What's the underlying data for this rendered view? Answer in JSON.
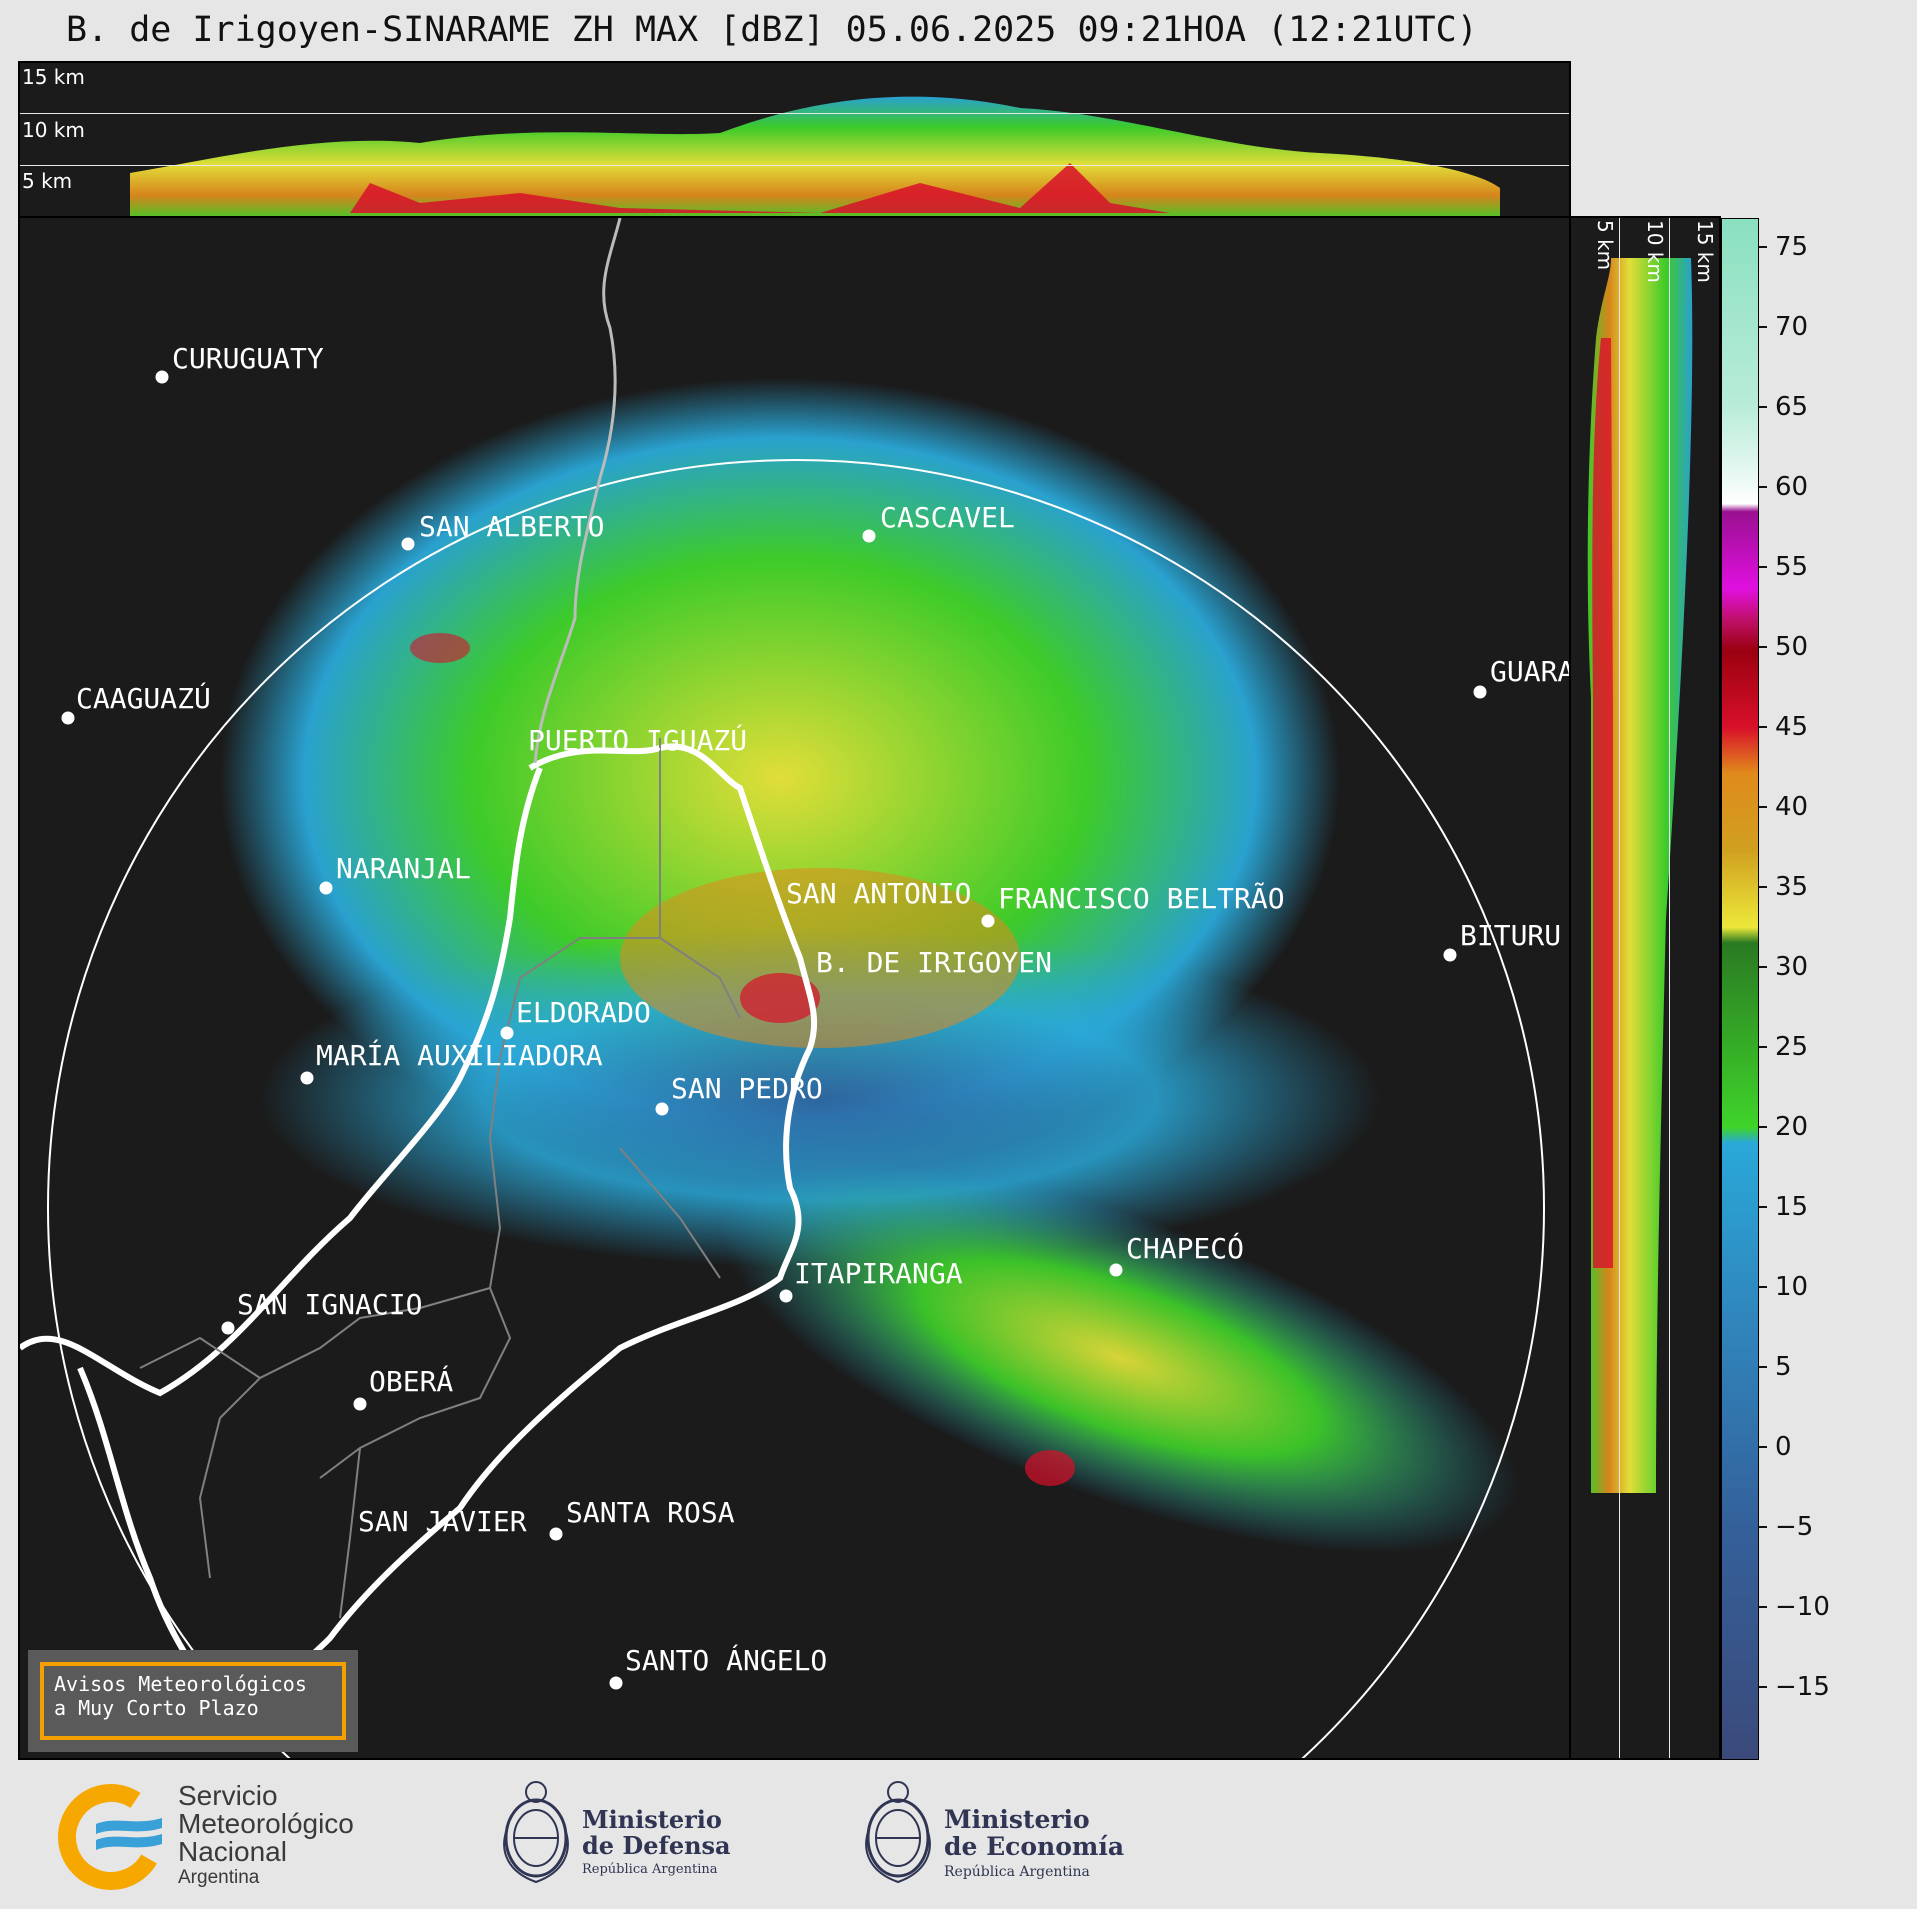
{
  "title": "B. de Irigoyen-SINARAME ZH MAX [dBZ] 05.06.2025 09:21HOA (12:21UTC)",
  "top_panel": {
    "altitude_labels": [
      "15 km",
      "10 km",
      "5 km"
    ]
  },
  "side_panel": {
    "altitude_labels": [
      "5 km",
      "10 km",
      "15 km"
    ]
  },
  "cities": [
    {
      "name": "CURUGUATY"
    },
    {
      "name": "SAN ALBERTO"
    },
    {
      "name": "CASCAVEL"
    },
    {
      "name": "CAAGUAZÚ"
    },
    {
      "name": "GUARA"
    },
    {
      "name": "PUERTO IGUAZÚ"
    },
    {
      "name": "NARANJAL"
    },
    {
      "name": "SAN ANTONIO"
    },
    {
      "name": "FRANCISCO BELTRÃO"
    },
    {
      "name": "BITURU"
    },
    {
      "name": "B. DE IRIGOYEN"
    },
    {
      "name": "ELDORADO"
    },
    {
      "name": "MARÍA AUXILIADORA"
    },
    {
      "name": "SAN PEDRO"
    },
    {
      "name": "CHAPECÓ"
    },
    {
      "name": "ITAPIRANGA"
    },
    {
      "name": "SAN IGNACIO"
    },
    {
      "name": "OBERÁ"
    },
    {
      "name": "SAN JAVIER"
    },
    {
      "name": "SANTA ROSA"
    },
    {
      "name": "SANTO ÁNGELO"
    }
  ],
  "warning_box": {
    "line1": "Avisos Meteorológicos",
    "line2": "a Muy Corto Plazo"
  },
  "colorbar": {
    "unit": "dBZ",
    "ticks": [
      "75",
      "70",
      "65",
      "60",
      "55",
      "50",
      "45",
      "40",
      "35",
      "30",
      "25",
      "20",
      "15",
      "10",
      "5",
      "0",
      "−5",
      "−10",
      "−15"
    ],
    "colors": {
      "low": "#3b4a7a",
      "blue": "#2aa8d8",
      "green": "#3fd42a",
      "dark_green": "#2a7a22",
      "yellow": "#ece83a",
      "orange": "#e08a1c",
      "red": "#d8102a",
      "dark_red": "#9a0010",
      "magenta": "#e010e0",
      "purple": "#9a1090",
      "white": "#ffffff",
      "mint": "#8ae0c0"
    }
  },
  "logos": {
    "smn": {
      "line1": "Servicio",
      "line2": "Meteorológico",
      "line3": "Nacional",
      "line4": "Argentina"
    },
    "defensa": {
      "line1": "Ministerio",
      "line2": "de Defensa",
      "sub": "República Argentina"
    },
    "economia": {
      "line1": "Ministerio",
      "line2": "de Economía",
      "sub": "República Argentina"
    }
  }
}
